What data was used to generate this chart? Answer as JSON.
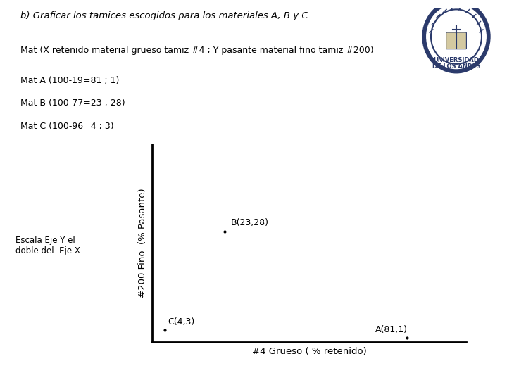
{
  "title_b": "b) Graficar los tamices escogidos para los materiales A, B y C.",
  "line1": "Mat (X retenido material grueso tamiz #4 ; Y pasante material fino tamiz #200)",
  "line2": "Mat A (100-19=81 ; 1)",
  "line3": "Mat B (100-77=23 ; 28)",
  "line4": "Mat C (100-96=4 ; 3)",
  "escala_note": "Escala Eje Y el\ndoble del  Eje X",
  "xlabel": "#4 Grueso ( % retenido)",
  "ylabel": "#200 Fino  (% Pasante)",
  "points": {
    "A": [
      81,
      1
    ],
    "B": [
      23,
      28
    ],
    "C": [
      4,
      3
    ]
  },
  "point_labels": {
    "A": "A(81,1)",
    "B": "B(23,28)",
    "C": "C(4,3)"
  },
  "xmin": 0,
  "xmax": 100,
  "ymin": 0,
  "ymax": 50,
  "background_color": "#ffffff",
  "font_color": "#000000"
}
